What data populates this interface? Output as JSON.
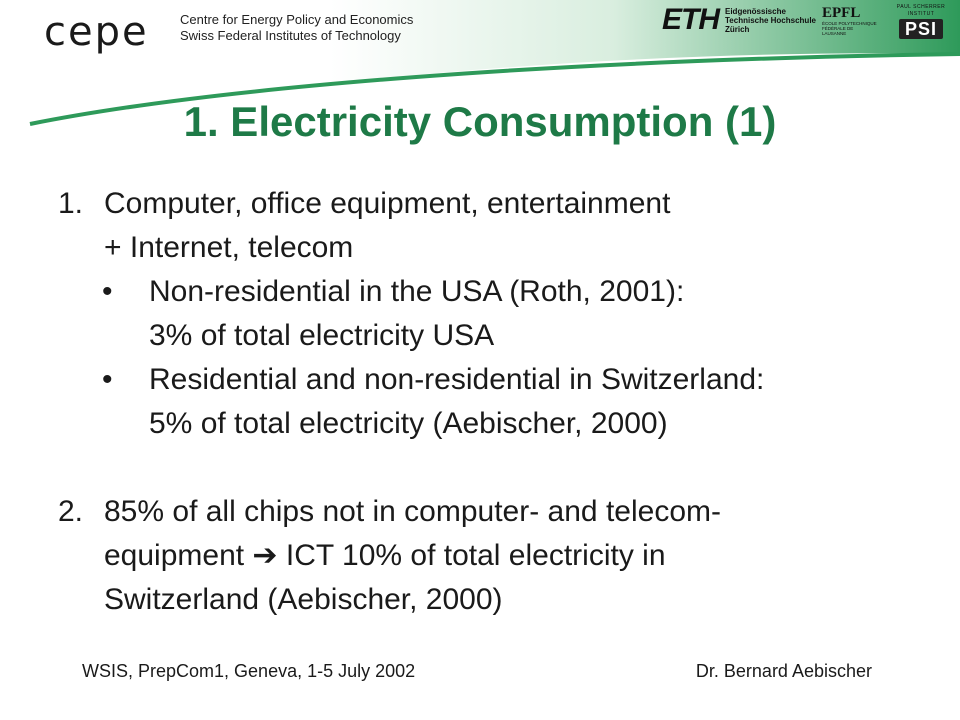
{
  "header": {
    "cepe_logo": "cepe",
    "cepe_line1": "Centre for Energy Policy and Economics",
    "cepe_line2": "Swiss Federal Institutes of Technology",
    "eth_mark": "ETH",
    "eth_line1": "Eidgenössische",
    "eth_line2": "Technische Hochschule",
    "eth_line3": "Zürich",
    "epfl_mark": "EPFL",
    "epfl_line1": "ÉCOLE POLYTECHNIQUE",
    "epfl_line2": "FÉDÉRALE DE LAUSANNE",
    "psi_small": "PAUL SCHERRER INSTITUT",
    "psi_mark": "PSI",
    "accent_color": "#2e9a5a"
  },
  "title": "1. Electricity Consumption (1)",
  "content": {
    "item1": {
      "number": "1.",
      "line1": "Computer, office equipment, entertainment",
      "line2": "+ Internet, telecom",
      "bullets": [
        {
          "symbol": "•",
          "line1": "Non-residential in the USA (Roth, 2001):",
          "line2": "3% of total electricity USA"
        },
        {
          "symbol": "•",
          "line1": "Residential and non-residential in Switzerland:",
          "line2": "5% of total electricity (Aebischer, 2000)"
        }
      ]
    },
    "item2": {
      "number": "2.",
      "line1": "85% of all chips not in computer- and telecom-",
      "line2": "equipment ➔ ICT 10% of total electricity in",
      "line3": "Switzerland (Aebischer, 2000)"
    }
  },
  "footer": {
    "left": "WSIS, PrepCom1, Geneva, 1-5 July 2002",
    "right": "Dr. Bernard Aebischer"
  }
}
